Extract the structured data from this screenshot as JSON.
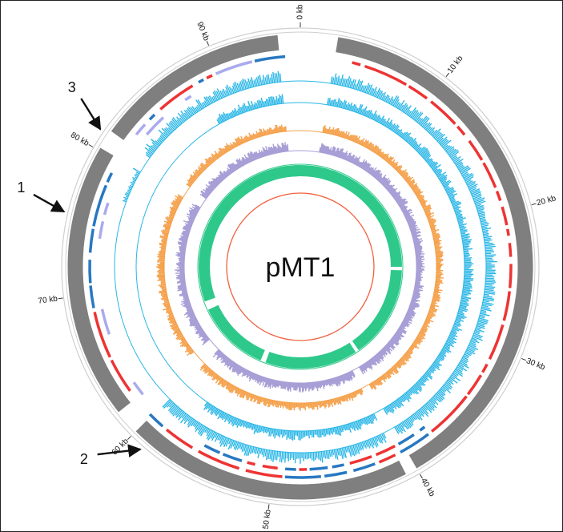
{
  "diagram": {
    "title": "pMT1",
    "genome_length_kb": 96,
    "tick_labels": [
      {
        "kb": 0,
        "label": "0 kb"
      },
      {
        "kb": 10,
        "label": "10 kb"
      },
      {
        "kb": 20,
        "label": "20 kb"
      },
      {
        "kb": 30,
        "label": "30 kb"
      },
      {
        "kb": 40,
        "label": "40 kb"
      },
      {
        "kb": 50,
        "label": "50 kb"
      },
      {
        "kb": 60,
        "label": "60 kb"
      },
      {
        "kb": 70,
        "label": "70 kb"
      },
      {
        "kb": 80,
        "label": "80 kb"
      },
      {
        "kb": 90,
        "label": "90 kb"
      }
    ],
    "gaps_kb": [
      {
        "start": 94.5,
        "end": 98.5
      },
      {
        "start": 80.2,
        "end": 81.5
      },
      {
        "start": 60.0,
        "end": 61.7
      },
      {
        "start": 40.0,
        "end": 40.8
      }
    ],
    "arrows": [
      {
        "label": "1",
        "target_kb": 75.5
      },
      {
        "label": "2",
        "target_kb": 59.0
      },
      {
        "label": "3",
        "target_kb": 81.2
      }
    ],
    "colors": {
      "backbone": "#7f7f7f",
      "backbone_light": "#cfcfcf",
      "plus_genes": "#ee3333",
      "minus_genes": "#2878c2",
      "other_genes": "#aaaaee",
      "coverage_a": "#29b6e6",
      "coverage_b": "#29b6e6",
      "gc_content": "#f5a04a",
      "gc_skew": "#a79fd6",
      "conserved": "#2ec98a",
      "inner_ring": "#f06040"
    }
  }
}
